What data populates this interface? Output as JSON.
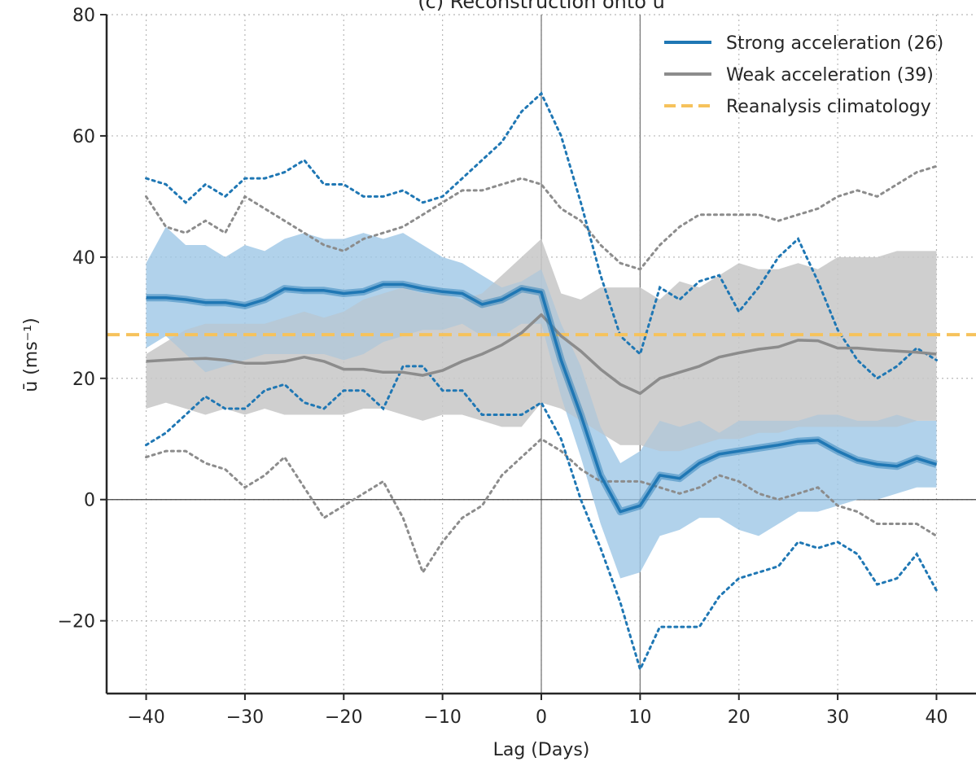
{
  "chart_data": {
    "type": "line",
    "title": "(c) Reconstruction onto ū",
    "xlabel": "Lag (Days)",
    "ylabel": "ū (ms⁻¹)",
    "xlim": [
      -44,
      44
    ],
    "ylim": [
      -32,
      80
    ],
    "xticks": [
      -40,
      -30,
      -20,
      -10,
      0,
      10,
      20,
      30,
      40
    ],
    "yticks": [
      -20,
      0,
      20,
      40,
      60,
      80
    ],
    "grid": true,
    "legend_position": "top-right",
    "reference_lines": {
      "vertical": [
        0,
        10
      ],
      "horizontal": [
        0
      ]
    },
    "colors": {
      "strong": "#1f77b4",
      "weak": "#8c8c8c",
      "climatology": "#f6c25c",
      "strong_band": "#9ec7e6",
      "weak_band": "#c8c8c8"
    },
    "x": [
      -40,
      -38,
      -36,
      -34,
      -32,
      -30,
      -28,
      -26,
      -24,
      -22,
      -20,
      -18,
      -16,
      -14,
      -12,
      -10,
      -8,
      -6,
      -4,
      -2,
      0,
      2,
      4,
      6,
      8,
      10,
      12,
      14,
      16,
      18,
      20,
      22,
      24,
      26,
      28,
      30,
      32,
      34,
      36,
      38,
      40
    ],
    "series": [
      {
        "name": "Strong acceleration (26)",
        "style": "solid",
        "mean": [
          33.3,
          33.3,
          33,
          32.5,
          32.5,
          32,
          33,
          34.8,
          34.5,
          34.5,
          34,
          34.3,
          35.5,
          35.5,
          34.8,
          34.3,
          34,
          32.2,
          33,
          34.8,
          34.2,
          23,
          14,
          4,
          -2,
          -1,
          4,
          3.5,
          6,
          7.5,
          8,
          8.5,
          9,
          9.6,
          9.8,
          8,
          6.5,
          5.8,
          5.5,
          6.8,
          5.8
        ],
        "band_upper": [
          39,
          45,
          42,
          42,
          40,
          42,
          41,
          43,
          44,
          43,
          43,
          44,
          43,
          44,
          42,
          40,
          39,
          37,
          35,
          36,
          38,
          29,
          22,
          12,
          6,
          8,
          13,
          12,
          13,
          11,
          13,
          13,
          13,
          13,
          14,
          14,
          13,
          13,
          14,
          13,
          13
        ],
        "band_lower": [
          25,
          27,
          24,
          21,
          22,
          23,
          24,
          24,
          24,
          24,
          23,
          24,
          26,
          27,
          28,
          28,
          29,
          27,
          27,
          29,
          29,
          17,
          7,
          -4,
          -13,
          -12,
          -6,
          -5,
          -3,
          -3,
          -5,
          -6,
          -4,
          -2,
          -2,
          -1,
          0,
          0,
          1,
          2,
          2
        ],
        "upper": [
          53,
          52,
          49,
          52,
          50,
          53,
          53,
          54,
          56,
          52,
          52,
          50,
          50,
          51,
          49,
          50,
          53,
          56,
          59,
          64,
          67,
          60,
          49,
          37,
          27,
          24,
          35,
          33,
          36,
          37,
          31,
          35,
          40,
          43,
          36,
          28,
          23,
          20,
          22,
          25,
          23
        ],
        "lower": [
          9,
          11,
          14,
          17,
          15,
          15,
          18,
          19,
          16,
          15,
          18,
          18,
          15,
          22,
          22,
          18,
          18,
          14,
          14,
          14,
          16,
          10,
          0,
          -8,
          -17,
          -28,
          -21,
          -21,
          -21,
          -16,
          -13,
          -12,
          -11,
          -7,
          -8,
          -7,
          -9,
          -14,
          -13,
          -9,
          -15
        ]
      },
      {
        "name": "Weak acceleration (39)",
        "style": "solid",
        "mean": [
          22.8,
          23,
          23.2,
          23.3,
          23,
          22.5,
          22.5,
          22.8,
          23.5,
          22.8,
          21.5,
          21.5,
          21,
          21,
          20.5,
          21.3,
          22.8,
          24,
          25.5,
          27.5,
          30.5,
          27,
          24.5,
          21.5,
          19,
          17.5,
          20,
          21,
          22,
          23.5,
          24.2,
          24.8,
          25.2,
          26.3,
          26.2,
          25,
          25,
          24.7,
          24.5,
          24.3,
          24
        ],
        "band_upper": [
          24,
          26,
          28,
          29,
          29,
          29,
          29,
          30,
          31,
          30,
          31,
          33,
          34,
          35,
          34,
          34,
          33,
          34,
          37,
          40,
          43,
          34,
          33,
          35,
          35,
          35,
          33,
          36,
          35,
          37,
          39,
          38,
          38,
          39,
          38,
          40,
          40,
          40,
          41,
          41,
          41
        ],
        "band_lower": [
          15,
          16,
          15,
          14,
          15,
          14,
          15,
          14,
          14,
          14,
          14,
          15,
          15,
          14,
          13,
          14,
          14,
          13,
          12,
          12,
          16,
          15,
          13,
          11,
          9,
          9,
          8,
          8,
          9,
          10,
          10,
          11,
          11,
          12,
          12,
          12,
          12,
          12,
          12,
          13,
          13
        ],
        "upper": [
          50,
          45,
          44,
          46,
          44,
          50,
          48,
          46,
          44,
          42,
          41,
          43,
          44,
          45,
          47,
          49,
          51,
          51,
          52,
          53,
          52,
          48,
          46,
          42,
          39,
          38,
          42,
          45,
          47,
          47,
          47,
          47,
          46,
          47,
          48,
          50,
          51,
          50,
          52,
          54,
          55
        ],
        "lower": [
          7,
          8,
          8,
          6,
          5,
          2,
          4,
          7,
          2,
          -3,
          -1,
          1,
          3,
          -3,
          -12,
          -7,
          -3,
          -1,
          4,
          7,
          10,
          8,
          5,
          3,
          3,
          3,
          2,
          1,
          2,
          4,
          3,
          1,
          0,
          1,
          2,
          -1,
          -2,
          -4,
          -4,
          -4,
          -6
        ]
      },
      {
        "name": "Reanalysis climatology",
        "style": "dashed",
        "value": 27.2
      }
    ]
  }
}
